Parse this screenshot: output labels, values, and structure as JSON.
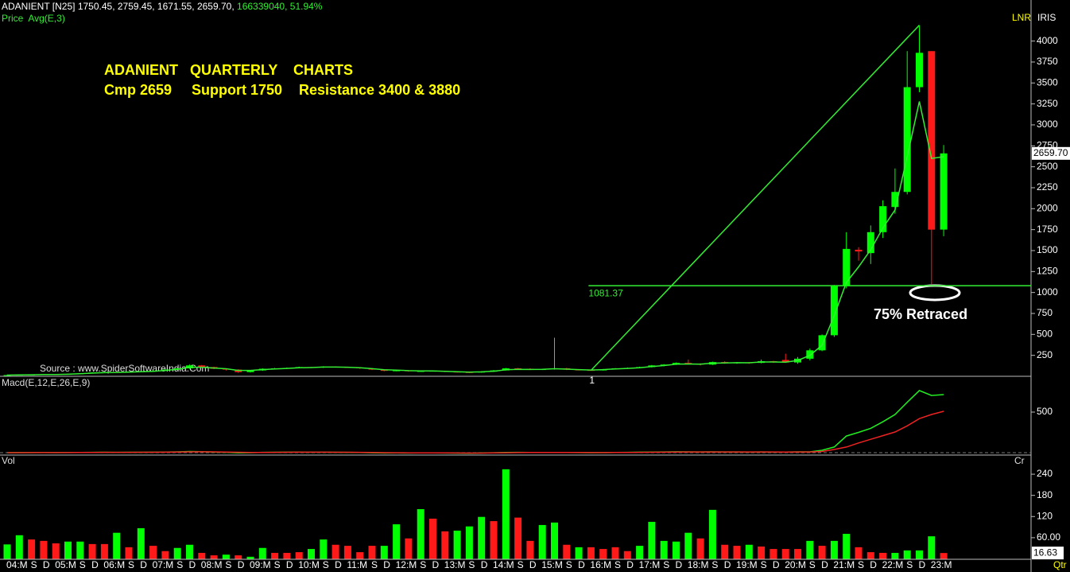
{
  "header": {
    "symbol": "ADANIENT [N25]",
    "ohlc_text": "1750.45, 2759.45, 1671.55, 2659.70,",
    "volume_text": "166339040,",
    "change_text": "51.94%"
  },
  "chart_data": {
    "type": "candlestick",
    "annotations": {
      "title": "ADANIENT   QUARTERLY    CHARTS",
      "cmp": "Cmp 2659",
      "support": "Support 1750",
      "resistance": "Resistance 3400 & 3880",
      "retraced": "75% Retraced",
      "source": "Source : www.SpiderSoftwareIndia.Com",
      "scale_mode": "LNR",
      "scale_name": "IRIS",
      "period": "Qtr"
    },
    "up_color": "#00ff00",
    "down_color": "#ff1a1a",
    "categories": [
      "04:M",
      null,
      "S",
      "D",
      "05:M",
      null,
      "S",
      "D",
      "06:M",
      null,
      "S",
      "D",
      "07:M",
      null,
      "S",
      "D",
      "08:M",
      null,
      "S",
      "D",
      "09:M",
      null,
      "S",
      "D",
      "10:M",
      null,
      "S",
      "D",
      "11:M",
      null,
      "S",
      "D",
      "12:M",
      null,
      "S",
      "D",
      "13:M",
      null,
      "S",
      "D",
      "14:M",
      null,
      "S",
      "D",
      "15:M",
      null,
      "S",
      "D",
      "16:M",
      null,
      "S",
      "D",
      "17:M",
      null,
      "S",
      "D",
      "18:M",
      null,
      "S",
      "D",
      "19:M",
      null,
      "S",
      "D",
      "20:M",
      null,
      "S",
      "D",
      "21:M",
      null,
      "S",
      "D",
      "22:M",
      null,
      "S",
      "D",
      "23:M",
      null
    ],
    "ohlc": [
      [
        10,
        20,
        8,
        15
      ],
      [
        15,
        22,
        13,
        18
      ],
      [
        18,
        24,
        16,
        20
      ],
      [
        20,
        28,
        18,
        25
      ],
      [
        25,
        27,
        20,
        22
      ],
      [
        22,
        30,
        20,
        28
      ],
      [
        28,
        38,
        26,
        35
      ],
      [
        35,
        48,
        33,
        45
      ],
      [
        45,
        55,
        42,
        50
      ],
      [
        50,
        52,
        40,
        45
      ],
      [
        45,
        58,
        43,
        55
      ],
      [
        55,
        65,
        50,
        60
      ],
      [
        60,
        70,
        55,
        65
      ],
      [
        65,
        85,
        62,
        80
      ],
      [
        80,
        100,
        75,
        95
      ],
      [
        95,
        140,
        90,
        130
      ],
      [
        130,
        135,
        100,
        110
      ],
      [
        110,
        115,
        85,
        90
      ],
      [
        90,
        95,
        70,
        80
      ],
      [
        80,
        85,
        40,
        50
      ],
      [
        50,
        75,
        45,
        70
      ],
      [
        70,
        95,
        65,
        90
      ],
      [
        90,
        100,
        85,
        95
      ],
      [
        95,
        105,
        90,
        100
      ],
      [
        100,
        115,
        95,
        110
      ],
      [
        110,
        112,
        98,
        105
      ],
      [
        105,
        120,
        100,
        115
      ],
      [
        115,
        118,
        105,
        110
      ],
      [
        110,
        112,
        100,
        105
      ],
      [
        105,
        108,
        90,
        95
      ],
      [
        95,
        98,
        75,
        80
      ],
      [
        80,
        85,
        60,
        65
      ],
      [
        65,
        75,
        60,
        70
      ],
      [
        70,
        72,
        55,
        60
      ],
      [
        60,
        68,
        57,
        62
      ],
      [
        62,
        70,
        60,
        65
      ],
      [
        65,
        67,
        50,
        55
      ],
      [
        55,
        58,
        45,
        50
      ],
      [
        50,
        52,
        40,
        45
      ],
      [
        45,
        60,
        43,
        55
      ],
      [
        55,
        75,
        52,
        70
      ],
      [
        70,
        100,
        68,
        95
      ],
      [
        95,
        100,
        85,
        90
      ],
      [
        90,
        95,
        75,
        80
      ],
      [
        80,
        90,
        75,
        85
      ],
      [
        85,
        460,
        80,
        95
      ],
      [
        95,
        100,
        75,
        80
      ],
      [
        80,
        82,
        70,
        75
      ],
      [
        75,
        78,
        65,
        70
      ],
      [
        70,
        88,
        68,
        85
      ],
      [
        85,
        98,
        82,
        95
      ],
      [
        95,
        105,
        90,
        100
      ],
      [
        100,
        115,
        95,
        110
      ],
      [
        110,
        135,
        105,
        130
      ],
      [
        130,
        145,
        120,
        140
      ],
      [
        140,
        165,
        135,
        160
      ],
      [
        160,
        200,
        145,
        150
      ],
      [
        150,
        155,
        130,
        140
      ],
      [
        140,
        175,
        135,
        170
      ],
      [
        170,
        180,
        150,
        160
      ],
      [
        160,
        170,
        150,
        165
      ],
      [
        165,
        168,
        150,
        160
      ],
      [
        160,
        200,
        155,
        180
      ],
      [
        180,
        185,
        160,
        170
      ],
      [
        195,
        270,
        160,
        165
      ],
      [
        165,
        230,
        150,
        210
      ],
      [
        210,
        330,
        190,
        310
      ],
      [
        310,
        500,
        300,
        490
      ],
      [
        490,
        1090,
        470,
        1080
      ],
      [
        1080,
        1720,
        1050,
        1520
      ],
      [
        1510,
        1540,
        1380,
        1490
      ],
      [
        1470,
        1800,
        1340,
        1720
      ],
      [
        1720,
        2100,
        1650,
        2030
      ],
      [
        2020,
        2480,
        1940,
        2200
      ],
      [
        2200,
        3880,
        2170,
        3450
      ],
      [
        3450,
        4190,
        3390,
        3860
      ],
      [
        3880,
        3880,
        1100,
        1750
      ],
      [
        1750.45,
        2759.45,
        1671.55,
        2659.7
      ]
    ],
    "last_price_label": "2659.70",
    "ylim": [
      0,
      4490
    ],
    "yticks": [
      250,
      500,
      750,
      1000,
      1250,
      1500,
      1750,
      2000,
      2250,
      2500,
      2750,
      3000,
      3250,
      3500,
      3750,
      4000
    ],
    "ema": {
      "name": "Price  Avg(E,3)",
      "color": "#33ee33",
      "values": [
        14,
        16,
        18,
        22,
        22,
        25,
        30,
        38,
        44,
        45,
        50,
        55,
        60,
        70,
        83,
        106,
        108,
        99,
        90,
        70,
        70,
        80,
        88,
        94,
        102,
        104,
        110,
        110,
        108,
        102,
        91,
        78,
        74,
        67,
        65,
        65,
        60,
        55,
        50,
        53,
        61,
        78,
        84,
        82,
        84,
        90,
        85,
        80,
        75,
        80,
        88,
        94,
        102,
        116,
        128,
        144,
        147,
        144,
        157,
        159,
        162,
        161,
        171,
        171,
        168,
        189,
        250,
        370,
        725,
        1120,
        1305,
        1510,
        1770,
        1985,
        2620,
        3280,
        2600,
        2620
      ]
    },
    "trendline": {
      "x": [
        48,
        75
      ],
      "y": [
        70,
        4190
      ],
      "label": "1",
      "color": "#33ee33"
    },
    "support_line": {
      "value": 1081.37,
      "label": "1081.37",
      "color": "#33ee33"
    },
    "macd": {
      "title": "Macd(E,12,E,26,E,9)",
      "ylim": [
        -29,
        921
      ],
      "yticks": [
        500
      ],
      "lines": [
        {
          "color": "#22ee22",
          "values": [
            0,
            1,
            1,
            2,
            1,
            2,
            3,
            4,
            5,
            4,
            5,
            5,
            6,
            8,
            10,
            15,
            12,
            8,
            5,
            -2,
            0,
            4,
            5,
            6,
            7,
            6,
            6,
            5,
            4,
            2,
            -1,
            -4,
            -3,
            -4,
            -3,
            -3,
            -4,
            -5,
            -6,
            -4,
            -1,
            3,
            4,
            3,
            3,
            3,
            2,
            1,
            0,
            1,
            3,
            4,
            6,
            8,
            9,
            11,
            10,
            9,
            10,
            9,
            9,
            8,
            9,
            8,
            7,
            10,
            10,
            30,
            70,
            205,
            250,
            300,
            380,
            470,
            620,
            765,
            705,
            715
          ]
        },
        {
          "color": "#ee2222",
          "values": [
            0,
            0,
            1,
            1,
            1,
            1,
            2,
            3,
            4,
            4,
            4,
            5,
            5,
            6,
            8,
            10,
            11,
            10,
            8,
            5,
            3,
            3,
            4,
            5,
            6,
            6,
            6,
            5,
            5,
            4,
            2,
            0,
            -1,
            -2,
            -3,
            -3,
            -3,
            -4,
            -5,
            -5,
            -3,
            -1,
            1,
            2,
            2,
            3,
            3,
            2,
            1,
            1,
            2,
            3,
            4,
            5,
            6,
            8,
            9,
            9,
            9,
            9,
            9,
            9,
            9,
            9,
            8,
            9,
            9,
            15,
            40,
            70,
            120,
            165,
            210,
            255,
            330,
            420,
            470,
            510
          ]
        }
      ]
    },
    "volume": {
      "title": "Vol",
      "unit": "Cr",
      "ylim": [
        0,
        283
      ],
      "yticks": [
        {
          "value": 60,
          "label": "60.00"
        },
        120,
        180,
        240
      ],
      "values": [
        41,
        67,
        55,
        51,
        44,
        49,
        49,
        42,
        42,
        74,
        33,
        87,
        37,
        22,
        31,
        40,
        17,
        10,
        12,
        10,
        6,
        31,
        17,
        17,
        19,
        28,
        55,
        40,
        37,
        19,
        37,
        37,
        98,
        58,
        141,
        114,
        78,
        80,
        92,
        119,
        107,
        254,
        117,
        51,
        96,
        103,
        40,
        33,
        33,
        28,
        33,
        22,
        37,
        105,
        51,
        49,
        74,
        58,
        139,
        40,
        37,
        40,
        35,
        28,
        28,
        28,
        51,
        37,
        51,
        71,
        33,
        19,
        17,
        17,
        24,
        24,
        64,
        16.63
      ],
      "up": [
        true,
        true,
        false,
        false,
        false,
        true,
        true,
        false,
        false,
        true,
        false,
        true,
        false,
        false,
        true,
        true,
        false,
        false,
        true,
        false,
        true,
        true,
        false,
        false,
        false,
        true,
        true,
        false,
        false,
        false,
        false,
        true,
        true,
        false,
        true,
        false,
        false,
        true,
        true,
        true,
        false,
        true,
        false,
        false,
        true,
        true,
        false,
        true,
        false,
        false,
        false,
        false,
        true,
        true,
        true,
        true,
        true,
        false,
        true,
        false,
        false,
        true,
        false,
        false,
        false,
        false,
        true,
        false,
        true,
        true,
        false,
        false,
        false,
        true,
        true,
        true,
        true,
        false
      ]
    }
  }
}
